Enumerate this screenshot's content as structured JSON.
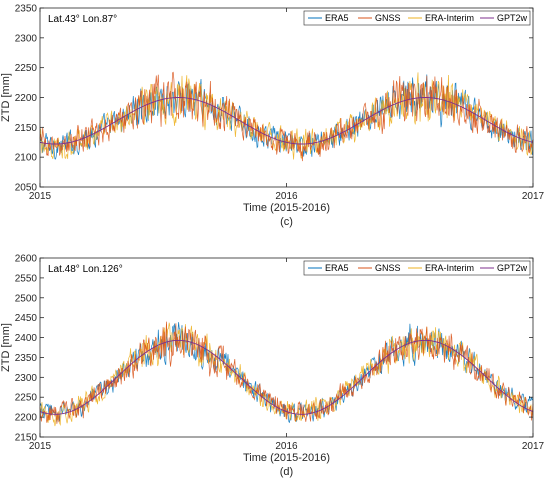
{
  "chart_data": [
    {
      "type": "line",
      "panel_label": "(c)",
      "annotation": "Lat.43° Lon.87°",
      "xlabel": "Time (2015-2016)",
      "ylabel": "ZTD [mm]",
      "xlim": [
        2015,
        2017
      ],
      "xticks": [
        "2015",
        "2016",
        "2017"
      ],
      "ylim": [
        2050,
        2350
      ],
      "yticks": [
        2050,
        2100,
        2150,
        2200,
        2250,
        2300,
        2350
      ],
      "grid": false,
      "legend_position": "top-right",
      "series": [
        {
          "name": "ERA5",
          "color": "#0072bd",
          "mean": 2160,
          "amplitude": 40,
          "peak_doy": 205,
          "noise": 32
        },
        {
          "name": "GNSS",
          "color": "#d95319",
          "mean": 2160,
          "amplitude": 40,
          "peak_doy": 205,
          "noise": 36
        },
        {
          "name": "ERA-Interim",
          "color": "#edb120",
          "mean": 2160,
          "amplitude": 40,
          "peak_doy": 205,
          "noise": 34
        },
        {
          "name": "GPT2w",
          "color": "#7e2f8e",
          "mean": 2161,
          "amplitude": 39,
          "peak_doy": 205,
          "noise": 0
        }
      ]
    },
    {
      "type": "line",
      "panel_label": "(d)",
      "annotation": "Lat.48° Lon.126°",
      "xlabel": "Time (2015-2016)",
      "ylabel": "ZTD [mm]",
      "xlim": [
        2015,
        2017
      ],
      "xticks": [
        "2015",
        "2016",
        "2017"
      ],
      "ylim": [
        2150,
        2600
      ],
      "yticks": [
        2150,
        2200,
        2250,
        2300,
        2350,
        2400,
        2450,
        2500,
        2550,
        2600
      ],
      "grid": false,
      "legend_position": "top-right",
      "series": [
        {
          "name": "ERA5",
          "color": "#0072bd",
          "mean": 2300,
          "amplitude": 90,
          "peak_doy": 205,
          "noise": 38
        },
        {
          "name": "GNSS",
          "color": "#d95319",
          "mean": 2300,
          "amplitude": 90,
          "peak_doy": 205,
          "noise": 42
        },
        {
          "name": "ERA-Interim",
          "color": "#edb120",
          "mean": 2300,
          "amplitude": 90,
          "peak_doy": 205,
          "noise": 40
        },
        {
          "name": "GPT2w",
          "color": "#7e2f8e",
          "mean": 2300,
          "amplitude": 93,
          "peak_doy": 205,
          "noise": 0
        }
      ]
    }
  ]
}
